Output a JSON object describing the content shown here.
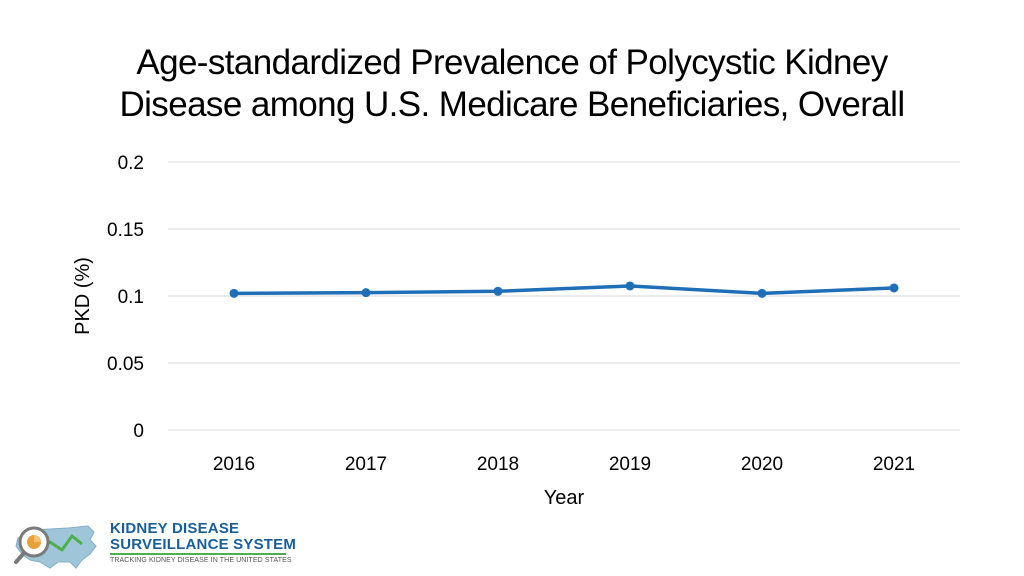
{
  "chart_data": {
    "type": "line",
    "title_lines": [
      "Age-standardized Prevalence of Polycystic Kidney",
      "Disease among U.S. Medicare Beneficiaries, Overall"
    ],
    "xlabel": "Year",
    "ylabel": "PKD (%)",
    "categories": [
      "2016",
      "2017",
      "2018",
      "2019",
      "2020",
      "2021"
    ],
    "series": [
      {
        "name": "Overall",
        "values": [
          0.102,
          0.1025,
          0.1035,
          0.1075,
          0.102,
          0.106
        ]
      }
    ],
    "ylim": [
      0,
      0.2
    ],
    "yticks": [
      "0",
      "0.05",
      "0.1",
      "0.15",
      "0.2"
    ],
    "ytick_values": [
      0,
      0.05,
      0.1,
      0.15,
      0.2
    ],
    "grid": true,
    "line_color": "#1f6fb8",
    "grid_color": "#d9d9d9"
  },
  "logo": {
    "line1": "KIDNEY DISEASE",
    "line2": "SURVEILLANCE SYSTEM",
    "tagline": "TRACKING KIDNEY DISEASE IN THE UNITED STATES",
    "brand_color": "#1a5e98",
    "accent_color": "#4caf50",
    "map_color": "#9fc5d8",
    "magnifier_color": "#e8a13a"
  }
}
